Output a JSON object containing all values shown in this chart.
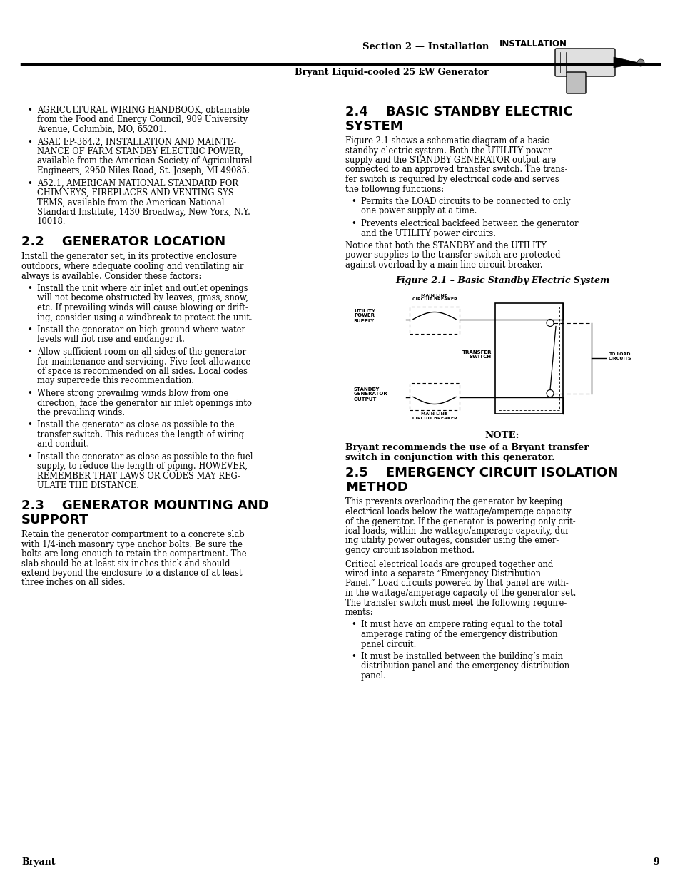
{
  "page_background": "#ffffff",
  "header_section_text": "Section 2 — Installation",
  "header_subtitle": "Bryant Liquid-cooled 25 kW Generator",
  "header_tag": "INSTALLATION",
  "footer_brand": "Bryant",
  "footer_page": "9",
  "left_bullets_intro": [
    "AGRICULTURAL WIRING HANDBOOK, obtainable\nfrom the Food and Energy Council, 909 University\nAvenue, Columbia, MO, 65201.",
    "ASAE EP-364.2, INSTALLATION AND MAINTE-\nNANCE OF FARM STANDBY ELECTRIC POWER,\navailable from the American Society of Agricultural\nEngineers, 2950 Niles Road, St. Joseph, MI 49085.",
    "A52.1, AMERICAN NATIONAL STANDARD FOR\nCHIMNEYS, FIREPLACES AND VENTING SYS-\nTEMS, available from the American National\nStandard Institute, 1430 Broadway, New York, N.Y.\n10018."
  ],
  "sec22_heading": "2.2    GENERATOR LOCATION",
  "sec22_intro": "Install the generator set, in its protective enclosure\noutdoors, where adequate cooling and ventilating air\nalways is available. Consider these factors:",
  "sec22_bullets": [
    "Install the unit where air inlet and outlet openings\nwill not become obstructed by leaves, grass, snow,\netc. If prevailing winds will cause blowing or drift-\ning, consider using a windbreak to protect the unit.",
    "Install the generator on high ground where water\nlevels will not rise and endanger it.",
    "Allow sufficient room on all sides of the generator\nfor maintenance and servicing. Five feet allowance\nof space is recommended on all sides. Local codes\nmay supercede this recommendation.",
    "Where strong prevailing winds blow from one\ndirection, face the generator air inlet openings into\nthe prevailing winds.",
    "Install the generator as close as possible to the\ntransfer switch. This reduces the length of wiring\nand conduit.",
    "Install the generator as close as possible to the fuel\nsupply, to reduce the length of piping. HOWEVER,\nREMEMBER THAT LAWS OR CODES MAY REG-\nULATE THE DISTANCE."
  ],
  "sec23_heading_line1": "2.3    GENERATOR MOUNTING AND",
  "sec23_heading_line2": "          SUPPORT",
  "sec23_body": "Retain the generator compartment to a concrete slab\nwith 1/4-inch masonry type anchor bolts. Be sure the\nbolts are long enough to retain the compartment. The\nslab should be at least six inches thick and should\nextend beyond the enclosure to a distance of at least\nthree inches on all sides.",
  "sec24_heading_line1": "2.4    BASIC STANDBY ELECTRIC",
  "sec24_heading_line2": "          SYSTEM",
  "sec24_intro": "Figure 2.1 shows a schematic diagram of a basic\nstandby electric system. Both the UTILITY power\nsupply and the STANDBY GENERATOR output are\nconnected to an approved transfer switch. The trans-\nfer switch is required by electrical code and serves\nthe following functions:",
  "sec24_bullets": [
    "Permits the LOAD circuits to be connected to only\none power supply at a time.",
    "Prevents electrical backfeed between the generator\nand the UTILITY power circuits."
  ],
  "sec24_notice": "Notice that both the STANDBY and the UTILITY\npower supplies to the transfer switch are protected\nagainst overload by a main line circuit breaker.",
  "fig_caption": "Figure 2.1 – Basic Standby Electric System",
  "note_heading": "NOTE:",
  "note_body_line1": "Bryant recommends the use of a Bryant transfer",
  "note_body_line2": "switch in conjunction with this generator.",
  "sec25_heading_line1": "2.5    EMERGENCY CIRCUIT ISOLATION",
  "sec25_heading_line2": "          METHOD",
  "sec25_para1": "This prevents overloading the generator by keeping\nelectrical loads below the wattage/amperage capacity\nof the generator. If the generator is powering only crit-\nical loads, within the wattage/amperage capacity, dur-\ning utility power outages, consider using the emer-\ngency circuit isolation method.",
  "sec25_para2": "Critical electrical loads are grouped together and\nwired into a separate “Emergency Distribution\nPanel.” Load circuits powered by that panel are with-\nin the wattage/amperage capacity of the generator set.\nThe transfer switch must meet the following require-\nments:",
  "sec25_bullets": [
    "It must have an ampere rating equal to the total\namperage rating of the emergency distribution\npanel circuit.",
    "It must be installed between the building’s main\ndistribution panel and the emergency distribution\npanel."
  ]
}
